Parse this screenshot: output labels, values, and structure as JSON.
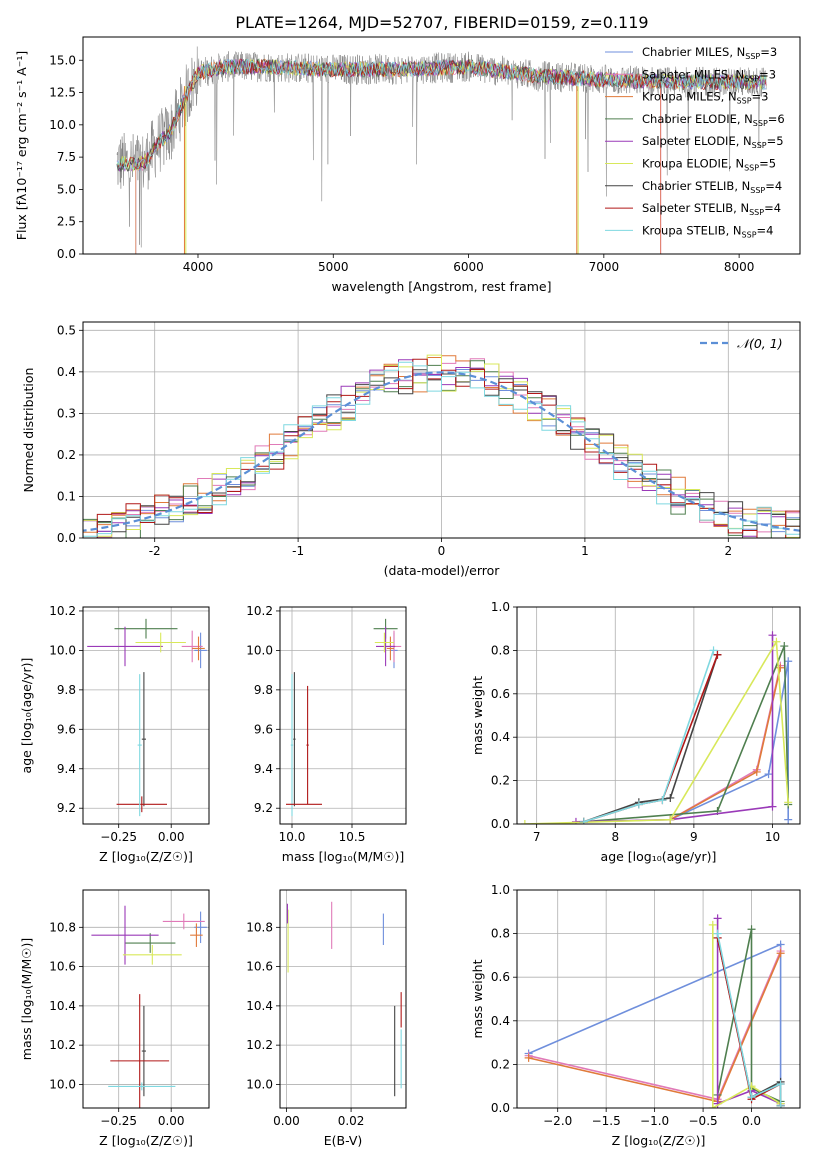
{
  "figure": {
    "title": "PLATE=1264, MJD=52707, FIBERID=0159, z=0.119"
  },
  "colors": {
    "Chabrier MILES": "#6f8fdc",
    "Salpeter MILES": "#e07ab8",
    "Kroupa MILES": "#e07a3a",
    "Chabrier ELODIE": "#4f7f4f",
    "Salpeter ELODIE": "#9a3ab8",
    "Kroupa ELODIE": "#d8e85a",
    "Chabrier STELIB": "#444444",
    "Salpeter STELIB": "#b01818",
    "Kroupa STELIB": "#7fd8e0",
    "gauss": "#5b8fd6",
    "grid": "#b0b0b0",
    "data": "#808080"
  },
  "chart_data": [
    {
      "id": "spectrum",
      "type": "line",
      "title": "PLATE=1264, MJD=52707, FIBERID=0159, z=0.119",
      "xlabel": "wavelength [Angstrom, rest frame]",
      "ylabel": "Flux [fλ10⁻¹⁷ erg cm⁻² s⁻¹ A⁻¹]",
      "xlim": [
        3150,
        8450
      ],
      "ylim": [
        0,
        16.8
      ],
      "xticks": [
        4000,
        5000,
        6000,
        7000,
        8000
      ],
      "yticks": [
        0.0,
        2.5,
        5.0,
        7.5,
        10.0,
        12.5,
        15.0
      ],
      "legend": [
        {
          "name": "Chabrier MILES",
          "label": "Chabrier MILES, N",
          "sub": "SSP",
          "suffix": "=3"
        },
        {
          "name": "Salpeter MILES",
          "label": "Salpeter MILES, N",
          "sub": "SSP",
          "suffix": "=3"
        },
        {
          "name": "Kroupa MILES",
          "label": "Kroupa MILES, N",
          "sub": "SSP",
          "suffix": "=3"
        },
        {
          "name": "Chabrier ELODIE",
          "label": "Chabrier ELODIE, N",
          "sub": "SSP",
          "suffix": "=6"
        },
        {
          "name": "Salpeter ELODIE",
          "label": "Salpeter ELODIE, N",
          "sub": "SSP",
          "suffix": "=5"
        },
        {
          "name": "Kroupa ELODIE",
          "label": "Kroupa ELODIE, N",
          "sub": "SSP",
          "suffix": "=5"
        },
        {
          "name": "Chabrier STELIB",
          "label": "Chabrier STELIB, N",
          "sub": "SSP",
          "suffix": "=4"
        },
        {
          "name": "Salpeter STELIB",
          "label": "Salpeter STELIB, N",
          "sub": "SSP",
          "suffix": "=4"
        },
        {
          "name": "Kroupa STELIB",
          "label": "Kroupa STELIB, N",
          "sub": "SSP",
          "suffix": "=4"
        }
      ],
      "data_anchor": {
        "x": [
          3400,
          3600,
          3700,
          3800,
          3900,
          4000,
          4200,
          4500,
          5000,
          5500,
          6000,
          6500,
          7000,
          7500,
          8000,
          8200
        ],
        "y": [
          7.0,
          7.0,
          8.5,
          9.5,
          12.0,
          14.0,
          14.5,
          14.5,
          14.3,
          14.3,
          14.5,
          13.8,
          13.5,
          13.3,
          13.3,
          13.3
        ]
      }
    },
    {
      "id": "residuals",
      "type": "histogram",
      "xlabel": "(data-model)/error",
      "ylabel": "Normed distribution",
      "xlim": [
        -2.5,
        2.5
      ],
      "ylim": [
        0,
        0.52
      ],
      "xticks": [
        -2,
        -1,
        0,
        1,
        2
      ],
      "yticks": [
        0.0,
        0.1,
        0.2,
        0.3,
        0.4,
        0.5
      ],
      "gauss_label": "𝒩(0, 1)"
    },
    {
      "id": "z-age",
      "type": "errorbar",
      "xlabel": "Z [log₁₀(Z/Z☉)]",
      "ylabel": "age  [log₁₀(age/yr)]",
      "xlim": [
        -0.42,
        0.18
      ],
      "ylim": [
        9.12,
        10.22
      ],
      "xticks": [
        -0.25,
        0.0
      ],
      "xticklabels": [
        "−0.25",
        "0.00"
      ],
      "yticks": [
        9.2,
        9.4,
        9.6,
        9.8,
        10.0,
        10.2
      ],
      "points": [
        {
          "m": "Chabrier MILES",
          "x": 0.14,
          "y": 10.0,
          "xe": 0.03,
          "ye": 0.09
        },
        {
          "m": "Salpeter MILES",
          "x": 0.1,
          "y": 10.02,
          "xe": 0.05,
          "ye": 0.08
        },
        {
          "m": "Kroupa MILES",
          "x": 0.13,
          "y": 10.01,
          "xe": 0.03,
          "ye": 0.06
        },
        {
          "m": "Chabrier ELODIE",
          "x": -0.12,
          "y": 10.11,
          "xe": 0.15,
          "ye": 0.05
        },
        {
          "m": "Salpeter ELODIE",
          "x": -0.22,
          "y": 10.02,
          "xe": 0.18,
          "ye": 0.1
        },
        {
          "m": "Kroupa ELODIE",
          "x": -0.05,
          "y": 10.04,
          "xe": 0.12,
          "ye": 0.05
        },
        {
          "m": "Chabrier STELIB",
          "x": -0.13,
          "y": 9.55,
          "xe": 0.01,
          "ye": 0.34
        },
        {
          "m": "Salpeter STELIB",
          "x": -0.14,
          "y": 9.22,
          "xe": 0.12,
          "ye": 0.04
        },
        {
          "m": "Kroupa STELIB",
          "x": -0.15,
          "y": 9.52,
          "xe": 0.01,
          "ye": 0.36
        }
      ]
    },
    {
      "id": "mass-age",
      "type": "errorbar",
      "xlabel": "mass [log₁₀(M/M☉)]",
      "ylabel": "",
      "xlim": [
        9.9,
        10.95
      ],
      "ylim": [
        9.12,
        10.22
      ],
      "xticks": [
        10.0,
        10.5
      ],
      "xticklabels": [
        "10.0",
        "10.5"
      ],
      "yticks": [
        9.2,
        9.4,
        9.6,
        9.8,
        10.0,
        10.2
      ],
      "points": [
        {
          "m": "Chabrier MILES",
          "x": 10.85,
          "y": 10.0,
          "xe": 0.03,
          "ye": 0.09
        },
        {
          "m": "Salpeter MILES",
          "x": 10.85,
          "y": 10.02,
          "xe": 0.06,
          "ye": 0.08
        },
        {
          "m": "Kroupa MILES",
          "x": 10.82,
          "y": 10.01,
          "xe": 0.03,
          "ye": 0.06
        },
        {
          "m": "Chabrier ELODIE",
          "x": 10.78,
          "y": 10.11,
          "xe": 0.1,
          "ye": 0.05
        },
        {
          "m": "Salpeter ELODIE",
          "x": 10.78,
          "y": 10.02,
          "xe": 0.08,
          "ye": 0.1
        },
        {
          "m": "Kroupa ELODIE",
          "x": 10.77,
          "y": 10.04,
          "xe": 0.08,
          "ye": 0.05
        },
        {
          "m": "Chabrier STELIB",
          "x": 10.02,
          "y": 9.55,
          "xe": 0.01,
          "ye": 0.34
        },
        {
          "m": "Salpeter STELIB",
          "x": 10.13,
          "y": 9.52,
          "xe": 0.01,
          "ye": 0.3
        },
        {
          "m": "Kroupa STELIB",
          "x": 10.0,
          "y": 9.52,
          "xe": 0.01,
          "ye": 0.36
        },
        {
          "m": "Salpeter STELIB",
          "x": 10.1,
          "y": 9.22,
          "xe": 0.15,
          "ye": 0.0
        }
      ]
    },
    {
      "id": "age-weight",
      "type": "line",
      "xlabel": "age  [log₁₀(age/yr)]",
      "ylabel": "mass weight",
      "xlim": [
        6.75,
        10.35
      ],
      "ylim": [
        0,
        1.0
      ],
      "xticks": [
        7,
        8,
        9,
        10
      ],
      "xticklabels": [
        "7",
        "8",
        "9",
        "10"
      ],
      "yticks": [
        0.0,
        0.2,
        0.4,
        0.6,
        0.8,
        1.0
      ],
      "series": [
        {
          "m": "Chabrier MILES",
          "x": [
            8.7,
            9.95,
            10.2,
            10.2
          ],
          "y": [
            0.02,
            0.23,
            0.75,
            0.02
          ]
        },
        {
          "m": "Salpeter MILES",
          "x": [
            8.7,
            9.8,
            10.1
          ],
          "y": [
            0.02,
            0.25,
            0.73
          ]
        },
        {
          "m": "Kroupa MILES",
          "x": [
            8.7,
            9.8,
            10.1
          ],
          "y": [
            0.02,
            0.24,
            0.72
          ]
        },
        {
          "m": "Chabrier ELODIE",
          "x": [
            7.6,
            9.3,
            10.15,
            10.2
          ],
          "y": [
            0.01,
            0.06,
            0.82,
            0.09
          ]
        },
        {
          "m": "Salpeter ELODIE",
          "x": [
            7.5,
            8.7,
            10.0,
            10.0
          ],
          "y": [
            0.01,
            0.02,
            0.08,
            0.87
          ]
        },
        {
          "m": "Kroupa ELODIE",
          "x": [
            6.85,
            8.7,
            10.05,
            10.2
          ],
          "y": [
            0.0,
            0.02,
            0.84,
            0.1
          ]
        },
        {
          "m": "Chabrier STELIB",
          "x": [
            7.6,
            8.3,
            8.7,
            9.3
          ],
          "y": [
            0.01,
            0.1,
            0.12,
            0.78
          ]
        },
        {
          "m": "Salpeter STELIB",
          "x": [
            7.6,
            8.3,
            8.6,
            9.3
          ],
          "y": [
            0.01,
            0.09,
            0.11,
            0.78
          ]
        },
        {
          "m": "Kroupa STELIB",
          "x": [
            7.6,
            8.3,
            8.6,
            9.25
          ],
          "y": [
            0.01,
            0.09,
            0.11,
            0.8
          ]
        }
      ]
    },
    {
      "id": "z-mass",
      "type": "errorbar",
      "xlabel": "Z [log₁₀(Z/Z☉)]",
      "ylabel": "mass [log₁₀(M/M☉)]",
      "xlim": [
        -0.42,
        0.18
      ],
      "ylim": [
        9.88,
        10.99
      ],
      "xticks": [
        -0.25,
        0.0
      ],
      "xticklabels": [
        "−0.25",
        "0.00"
      ],
      "yticks": [
        10.0,
        10.2,
        10.4,
        10.6,
        10.8
      ],
      "points": [
        {
          "m": "Chabrier MILES",
          "x": 0.14,
          "y": 10.8,
          "xe": 0.03,
          "ye": 0.08
        },
        {
          "m": "Salpeter MILES",
          "x": 0.06,
          "y": 10.83,
          "xe": 0.1,
          "ye": 0.04
        },
        {
          "m": "Kroupa MILES",
          "x": 0.12,
          "y": 10.76,
          "xe": 0.03,
          "ye": 0.06
        },
        {
          "m": "Chabrier ELODIE",
          "x": -0.1,
          "y": 10.72,
          "xe": 0.12,
          "ye": 0.05
        },
        {
          "m": "Salpeter ELODIE",
          "x": -0.22,
          "y": 10.76,
          "xe": 0.16,
          "ye": 0.15
        },
        {
          "m": "Kroupa ELODIE",
          "x": -0.09,
          "y": 10.66,
          "xe": 0.14,
          "ye": 0.05
        },
        {
          "m": "Chabrier STELIB",
          "x": -0.13,
          "y": 10.17,
          "xe": 0.01,
          "ye": 0.23
        },
        {
          "m": "Salpeter STELIB",
          "x": -0.15,
          "y": 10.12,
          "xe": 0.14,
          "ye": 0.34
        },
        {
          "m": "Kroupa STELIB",
          "x": -0.14,
          "y": 9.99,
          "xe": 0.16,
          "ye": 0.02
        }
      ]
    },
    {
      "id": "ebv-mass",
      "type": "errorbar",
      "xlabel": "E(B-V)",
      "ylabel": "",
      "xlim": [
        -0.002,
        0.037
      ],
      "ylim": [
        9.88,
        10.99
      ],
      "xticks": [
        0.0,
        0.02
      ],
      "xticklabels": [
        "0.00",
        "0.02"
      ],
      "yticks": [
        10.0,
        10.2,
        10.4,
        10.6,
        10.8
      ],
      "points": [
        {
          "m": "Chabrier MILES",
          "x": 0.03,
          "y": 10.79,
          "xe": 0,
          "ye": 0.08
        },
        {
          "m": "Salpeter MILES",
          "x": 0.014,
          "y": 10.81,
          "xe": 0,
          "ye": 0.12
        },
        {
          "m": "Kroupa ELODIE",
          "x": 0.0005,
          "y": 10.73,
          "xe": 0,
          "ye": 0.16
        },
        {
          "m": "Salpeter ELODIE",
          "x": 0.0003,
          "y": 10.87,
          "xe": 0,
          "ye": 0.05
        },
        {
          "m": "Chabrier STELIB",
          "x": 0.0335,
          "y": 10.17,
          "xe": 0,
          "ye": 0.23
        },
        {
          "m": "Salpeter STELIB",
          "x": 0.0355,
          "y": 10.38,
          "xe": 0,
          "ye": 0.09
        },
        {
          "m": "Kroupa STELIB",
          "x": 0.0355,
          "y": 10.13,
          "xe": 0,
          "ye": 0.15
        }
      ]
    },
    {
      "id": "z-weight",
      "type": "line",
      "xlabel": "Z [log₁₀(Z/Z☉)]",
      "ylabel": "mass weight",
      "xlim": [
        -2.42,
        0.5
      ],
      "ylim": [
        0,
        1.0
      ],
      "xticks": [
        -2.0,
        -1.5,
        -1.0,
        -0.5,
        0.0
      ],
      "xticklabels": [
        "−2.0",
        "−1.5",
        "−1.0",
        "−0.5",
        "0.0"
      ],
      "yticks": [
        0.0,
        0.2,
        0.4,
        0.6,
        0.8,
        1.0
      ],
      "series": [
        {
          "m": "Chabrier MILES",
          "x": [
            -2.3,
            0.3,
            0.3,
            0.3
          ],
          "y": [
            0.25,
            0.75,
            0.02,
            0.01
          ]
        },
        {
          "m": "Salpeter MILES",
          "x": [
            -2.3,
            -0.35,
            0.3
          ],
          "y": [
            0.24,
            0.04,
            0.72
          ]
        },
        {
          "m": "Kroupa MILES",
          "x": [
            -2.3,
            -0.35,
            0.3
          ],
          "y": [
            0.23,
            0.03,
            0.71
          ]
        },
        {
          "m": "Chabrier ELODIE",
          "x": [
            -0.35,
            0.0,
            0.0,
            0.3
          ],
          "y": [
            0.06,
            0.82,
            0.09,
            0.03
          ]
        },
        {
          "m": "Salpeter ELODIE",
          "x": [
            -0.35,
            -0.35,
            0.0,
            0.3
          ],
          "y": [
            0.87,
            0.02,
            0.08,
            0.02
          ]
        },
        {
          "m": "Kroupa ELODIE",
          "x": [
            -0.4,
            -0.4,
            0.0,
            0.3
          ],
          "y": [
            0.84,
            0.0,
            0.1,
            0.02
          ]
        },
        {
          "m": "Chabrier STELIB",
          "x": [
            -0.35,
            0.0,
            0.3,
            0.3
          ],
          "y": [
            0.78,
            0.05,
            0.12,
            0.01
          ]
        },
        {
          "m": "Salpeter STELIB",
          "x": [
            -0.35,
            0.0,
            0.3,
            0.3
          ],
          "y": [
            0.78,
            0.04,
            0.11,
            0.01
          ]
        },
        {
          "m": "Kroupa STELIB",
          "x": [
            -0.35,
            0.0,
            0.3,
            0.3
          ],
          "y": [
            0.8,
            0.05,
            0.11,
            0.01
          ]
        }
      ]
    }
  ]
}
